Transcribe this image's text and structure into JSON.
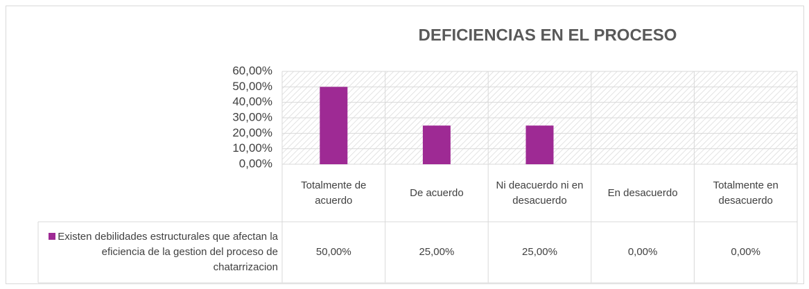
{
  "chart_data": {
    "type": "bar",
    "title": "DEFICIENCIAS EN EL PROCESO",
    "categories": [
      "Totalmente de acuerdo",
      "De acuerdo",
      "Ni deacuerdo ni en desacuerdo",
      "En desacuerdo",
      "Totalmente en desacuerdo"
    ],
    "series": [
      {
        "name": "Existen debilidades estructurales que afectan la eficiencia de la gestion del proceso de chatarrizacion",
        "color": "#9e2a94",
        "values": [
          50,
          25,
          25,
          0,
          0
        ],
        "value_labels": [
          "50,00%",
          "25,00%",
          "25,00%",
          "0,00%",
          "0,00%"
        ]
      }
    ],
    "ylim": [
      0,
      60
    ],
    "yticks": [
      {
        "value": 0,
        "label": "0,00%"
      },
      {
        "value": 10,
        "label": "10,00%"
      },
      {
        "value": 20,
        "label": "20,00%"
      },
      {
        "value": 30,
        "label": "30,00%"
      },
      {
        "value": 40,
        "label": "40,00%"
      },
      {
        "value": 50,
        "label": "50,00%"
      },
      {
        "value": 60,
        "label": "60,00%"
      }
    ],
    "grid": true
  }
}
